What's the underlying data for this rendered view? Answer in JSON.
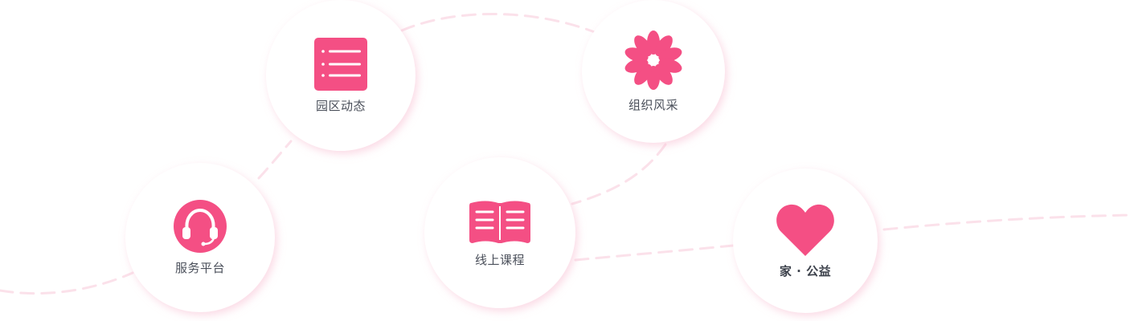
{
  "theme": {
    "accent": "#f44f84",
    "dash": "#fbe1ea",
    "label": "#4a4f5a"
  },
  "nodes": [
    {
      "id": "fuwu",
      "label": "服务平台",
      "icon": "headset-icon"
    },
    {
      "id": "yuanqu",
      "label": "园区动态",
      "icon": "list-icon"
    },
    {
      "id": "kecheng",
      "label": "线上课程",
      "icon": "open-book-icon"
    },
    {
      "id": "zuzhi",
      "label": "组织风采",
      "icon": "flower-icon"
    },
    {
      "id": "jia",
      "label": "家 · 公益",
      "icon": "heart-icon"
    }
  ]
}
